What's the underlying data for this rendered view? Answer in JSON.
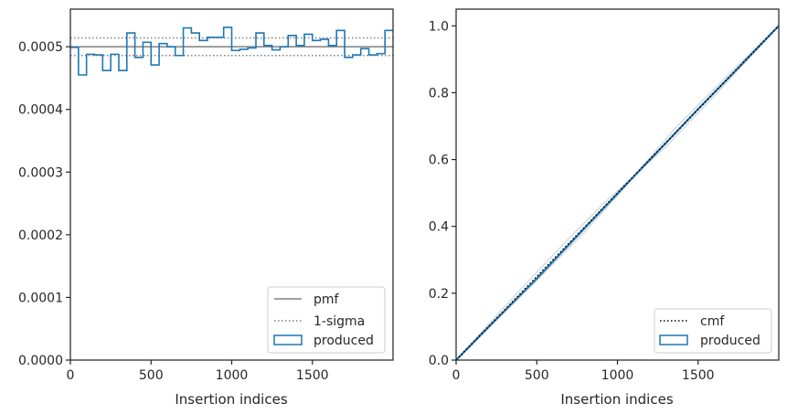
{
  "chart_data": [
    {
      "type": "step",
      "xlabel": "Insertion indices",
      "ylabel": "",
      "xlim": [
        0,
        2000
      ],
      "ylim": [
        0,
        0.00056
      ],
      "xticks": [
        0,
        500,
        1000,
        1500
      ],
      "xtick_labels": [
        "0",
        "500",
        "1000",
        "1500"
      ],
      "yticks": [
        0,
        0.0001,
        0.0002,
        0.0003,
        0.0004,
        0.0005
      ],
      "ytick_labels": [
        "0.0000",
        "0.0001",
        "0.0002",
        "0.0003",
        "0.0004",
        "0.0005"
      ],
      "grid": false,
      "legend_position": "lower-right",
      "legend": [
        "pmf",
        "1-sigma",
        "produced"
      ],
      "pmf": 0.0005,
      "sigma_band": [
        0.000486,
        0.000514
      ],
      "series": [
        {
          "name": "produced",
          "bin_edges": [
            0,
            50,
            100,
            150,
            200,
            250,
            300,
            350,
            400,
            450,
            500,
            550,
            600,
            650,
            700,
            750,
            800,
            850,
            900,
            950,
            1000,
            1050,
            1100,
            1150,
            1200,
            1250,
            1300,
            1350,
            1400,
            1450,
            1500,
            1550,
            1600,
            1650,
            1700,
            1750,
            1800,
            1850,
            1900,
            1950,
            2000
          ],
          "values": [
            0.000499,
            0.000455,
            0.000488,
            0.000487,
            0.000462,
            0.000488,
            0.000462,
            0.000522,
            0.000483,
            0.000507,
            0.000471,
            0.000505,
            0.0005,
            0.000486,
            0.00053,
            0.000522,
            0.00051,
            0.000515,
            0.000515,
            0.000531,
            0.000494,
            0.000496,
            0.000498,
            0.000522,
            0.000502,
            0.000495,
            0.0005,
            0.000518,
            0.000502,
            0.00052,
            0.00051,
            0.000512,
            0.000502,
            0.000526,
            0.000483,
            0.000487,
            0.000497,
            0.000487,
            0.000489,
            0.000526
          ]
        }
      ],
      "colors": {
        "pmf": "#808080",
        "sigma": "#808080",
        "produced": "#1f77b4"
      }
    },
    {
      "type": "line",
      "xlabel": "Insertion indices",
      "ylabel": "",
      "xlim": [
        0,
        2000
      ],
      "ylim": [
        0,
        1.05
      ],
      "xticks": [
        0,
        500,
        1000,
        1500
      ],
      "xtick_labels": [
        "0",
        "500",
        "1000",
        "1500"
      ],
      "yticks": [
        0,
        0.2,
        0.4,
        0.6,
        0.8,
        1.0
      ],
      "ytick_labels": [
        "0.0",
        "0.2",
        "0.4",
        "0.6",
        "0.8",
        "1.0"
      ],
      "grid": false,
      "legend_position": "lower-right",
      "legend": [
        "cmf",
        "produced"
      ],
      "series": [
        {
          "name": "cmf",
          "x": [
            0,
            2000
          ],
          "y": [
            0,
            1.0
          ],
          "style": "dotted"
        },
        {
          "name": "produced",
          "x": [
            0,
            250,
            500,
            750,
            1000,
            1250,
            1500,
            1750,
            2000
          ],
          "y": [
            0,
            0.123,
            0.244,
            0.371,
            0.498,
            0.624,
            0.751,
            0.875,
            1.0
          ]
        }
      ],
      "colors": {
        "cmf": "#000000",
        "produced": "#1f77b4",
        "realizations": "#d3d3d3"
      }
    }
  ]
}
